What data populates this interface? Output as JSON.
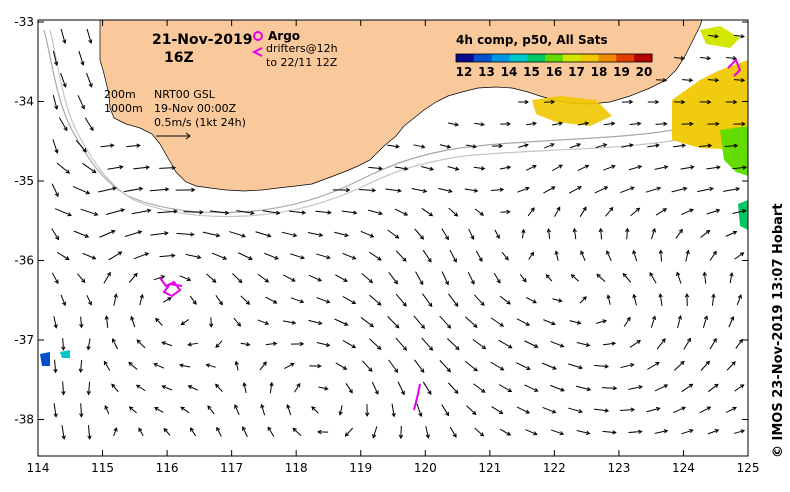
{
  "map": {
    "date": "21-Nov-2019",
    "hour": "16Z",
    "argo_label": "Argo",
    "drifters_label": "drifters@12h",
    "drifters_range": "to 22/11 12Z",
    "contour_200": "200m",
    "contour_1000": "1000m",
    "product": "NRT00 GSL",
    "product_date": "19-Nov 00:00Z",
    "scale_label": "0.5m/s (1kt 24h)",
    "credit": "© IMOS 23-Nov-2019 13:07 Hobart",
    "land_color": "#f9c89b",
    "argo_color": "#e600e6",
    "x_ticks": [
      "114",
      "115",
      "116",
      "117",
      "118",
      "119",
      "120",
      "121",
      "122",
      "123",
      "124",
      "125"
    ],
    "y_ticks": [
      "-33",
      "-34",
      "-35",
      "-36",
      "-37",
      "-38"
    ]
  },
  "colorbar": {
    "title": "4h comp, p50, All Sats",
    "ticks": [
      "12",
      "13",
      "14",
      "15",
      "16",
      "17",
      "18",
      "19",
      "20"
    ],
    "colors": [
      "#0a0a8c",
      "#0050d0",
      "#0096e6",
      "#00c8c8",
      "#00c864",
      "#64dc00",
      "#d2e600",
      "#f0c800",
      "#f08c00",
      "#e63c00",
      "#b40000"
    ]
  }
}
